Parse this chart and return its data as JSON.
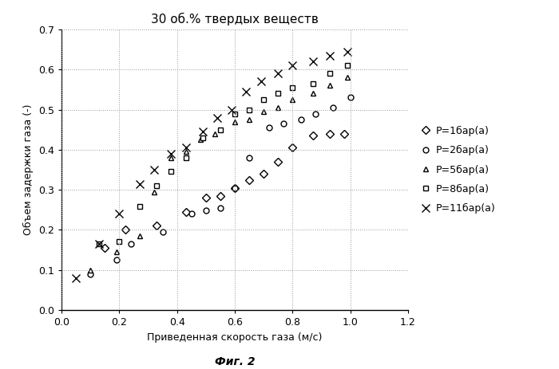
{
  "title": "30 об.% твердых веществ",
  "xlabel": "Приведенная скорость газа (м/с)",
  "ylabel": "Объем задержки газа (-)",
  "caption": "Фиг. 2",
  "xlim": [
    0,
    1.2
  ],
  "ylim": [
    0,
    0.7
  ],
  "xticks": [
    0,
    0.2,
    0.4,
    0.6,
    0.8,
    1.0,
    1.2
  ],
  "yticks": [
    0,
    0.1,
    0.2,
    0.3,
    0.4,
    0.5,
    0.6,
    0.7
  ],
  "series": [
    {
      "label": "P=1бар(а)",
      "marker": "D",
      "markersize": 5,
      "markerfacecolor": "white",
      "x": [
        0.15,
        0.22,
        0.33,
        0.43,
        0.5,
        0.55,
        0.6,
        0.65,
        0.7,
        0.75,
        0.8,
        0.87,
        0.93,
        0.98
      ],
      "y": [
        0.155,
        0.2,
        0.21,
        0.245,
        0.28,
        0.285,
        0.305,
        0.325,
        0.34,
        0.37,
        0.405,
        0.435,
        0.44,
        0.44
      ]
    },
    {
      "label": "P=2бар(а)",
      "marker": "o",
      "markersize": 5,
      "markerfacecolor": "white",
      "x": [
        0.1,
        0.19,
        0.24,
        0.35,
        0.45,
        0.5,
        0.55,
        0.6,
        0.65,
        0.72,
        0.77,
        0.83,
        0.88,
        0.94,
        1.0
      ],
      "y": [
        0.09,
        0.125,
        0.165,
        0.195,
        0.24,
        0.248,
        0.255,
        0.305,
        0.38,
        0.455,
        0.465,
        0.475,
        0.49,
        0.505,
        0.53
      ]
    },
    {
      "label": "P=5бар(а)",
      "marker": "^",
      "markersize": 5,
      "markerfacecolor": "white",
      "x": [
        0.1,
        0.19,
        0.27,
        0.32,
        0.38,
        0.43,
        0.48,
        0.53,
        0.6,
        0.65,
        0.7,
        0.75,
        0.8,
        0.87,
        0.93,
        0.99
      ],
      "y": [
        0.1,
        0.145,
        0.185,
        0.295,
        0.38,
        0.395,
        0.425,
        0.44,
        0.47,
        0.475,
        0.495,
        0.505,
        0.525,
        0.54,
        0.56,
        0.58
      ]
    },
    {
      "label": "P=8бар(а)",
      "marker": "s",
      "markersize": 5,
      "markerfacecolor": "white",
      "x": [
        0.13,
        0.2,
        0.27,
        0.33,
        0.38,
        0.43,
        0.49,
        0.55,
        0.6,
        0.65,
        0.7,
        0.75,
        0.8,
        0.87,
        0.93,
        0.99
      ],
      "y": [
        0.165,
        0.17,
        0.258,
        0.31,
        0.345,
        0.38,
        0.43,
        0.45,
        0.49,
        0.5,
        0.525,
        0.54,
        0.555,
        0.565,
        0.59,
        0.61
      ]
    },
    {
      "label": "P=11бар(а)",
      "marker": "x",
      "markersize": 7,
      "markerfacecolor": "black",
      "x": [
        0.05,
        0.13,
        0.2,
        0.27,
        0.32,
        0.38,
        0.43,
        0.49,
        0.54,
        0.59,
        0.64,
        0.69,
        0.75,
        0.8,
        0.87,
        0.93,
        0.99
      ],
      "y": [
        0.08,
        0.165,
        0.24,
        0.315,
        0.35,
        0.39,
        0.405,
        0.445,
        0.48,
        0.5,
        0.545,
        0.57,
        0.59,
        0.61,
        0.62,
        0.635,
        0.645
      ]
    }
  ],
  "background_color": "#ffffff",
  "grid_color": "#999999",
  "grid_linestyle": ":",
  "grid_linewidth": 0.7
}
